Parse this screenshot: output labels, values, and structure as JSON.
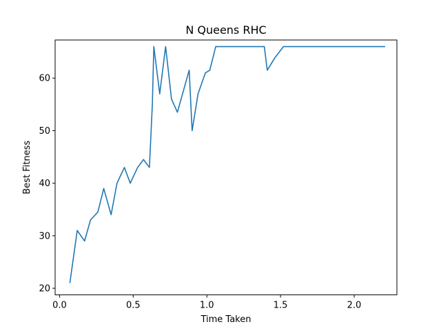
{
  "chart_data": {
    "type": "line",
    "title": "N Queens RHC",
    "xlabel": "Time Taken",
    "ylabel": "Best Fitness",
    "xlim": [
      -0.03,
      2.29
    ],
    "ylim": [
      18.75,
      67.25
    ],
    "xticks": [
      0.0,
      0.5,
      1.0,
      1.5,
      2.0
    ],
    "xtick_labels": [
      "0.0",
      "0.5",
      "1.0",
      "1.5",
      "2.0"
    ],
    "yticks": [
      20,
      30,
      40,
      50,
      60
    ],
    "ytick_labels": [
      "20",
      "30",
      "40",
      "50",
      "60"
    ],
    "grid": false,
    "line_color": "#1f77b4",
    "series": [
      {
        "x": [
          0.07,
          0.12,
          0.17,
          0.21,
          0.26,
          0.3,
          0.35,
          0.39,
          0.44,
          0.48,
          0.53,
          0.57,
          0.61,
          0.63,
          0.64,
          0.68,
          0.72,
          0.76,
          0.8,
          0.84,
          0.88,
          0.9,
          0.94,
          0.99,
          1.02,
          1.06,
          1.1,
          1.2,
          1.3,
          1.39,
          1.41,
          1.46,
          1.52,
          1.6,
          1.7,
          1.8,
          1.87,
          1.95,
          2.05,
          2.15,
          2.21
        ],
        "y": [
          21,
          31,
          29,
          33,
          34.5,
          39,
          34,
          40,
          43,
          40,
          43,
          44.5,
          43,
          55,
          66,
          57,
          66,
          56,
          53.5,
          57.5,
          61.5,
          50,
          57,
          61,
          61.5,
          66,
          66,
          66,
          66,
          66,
          61.5,
          63.8,
          66,
          66,
          66,
          66,
          66,
          66,
          66,
          66,
          66
        ]
      }
    ]
  }
}
